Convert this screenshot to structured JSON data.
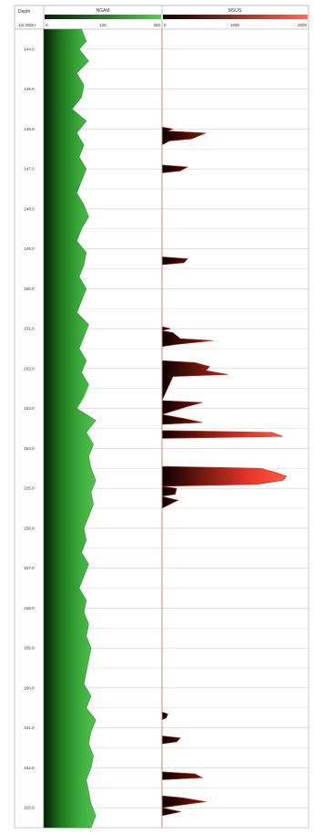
{
  "header": {
    "depth_title": "Depth",
    "depth_unit": "1m:200m",
    "track1": {
      "label": "NGAM",
      "min_label": "0",
      "mid_label": "125",
      "max_label": "250",
      "min": 0,
      "max": 250,
      "color": "#3fae3f"
    },
    "track2": {
      "label": "MSUS",
      "min_label": "0",
      "mid_label": "1000",
      "max_label": "2000",
      "min": 0,
      "max": 2000,
      "color": "#e8462f"
    }
  },
  "chart_data": {
    "type": "area",
    "title": "",
    "depth_range": [
      143.5,
      163.5
    ],
    "depth_ticks": [
      "144.0",
      "145.0",
      "146.0",
      "147.0",
      "148.0",
      "149.0",
      "150.0",
      "151.0",
      "152.0",
      "153.0",
      "154.0",
      "155.0",
      "156.0",
      "157.0",
      "158.0",
      "159.0",
      "160.0",
      "161.0",
      "162.0",
      "163.0"
    ],
    "series": [
      {
        "name": "NGAM",
        "x_range": [
          0,
          250
        ],
        "depth": [
          143.5,
          143.8,
          144.0,
          144.3,
          144.6,
          144.9,
          145.2,
          145.5,
          145.8,
          146.1,
          146.4,
          146.7,
          147.0,
          147.3,
          147.6,
          147.9,
          148.2,
          148.5,
          148.8,
          149.1,
          149.4,
          149.7,
          150.0,
          150.3,
          150.6,
          150.9,
          151.2,
          151.5,
          151.8,
          152.1,
          152.4,
          152.7,
          153.0,
          153.3,
          153.6,
          153.9,
          154.2,
          154.5,
          154.8,
          155.1,
          155.4,
          155.7,
          156.0,
          156.3,
          156.6,
          156.9,
          157.2,
          157.5,
          157.8,
          158.1,
          158.4,
          158.7,
          159.0,
          159.3,
          159.6,
          159.9,
          160.2,
          160.5,
          160.8,
          161.1,
          161.4,
          161.7,
          162.0,
          162.3,
          162.6,
          162.9,
          163.2,
          163.5
        ],
        "values": [
          80,
          90,
          75,
          95,
          70,
          85,
          80,
          60,
          90,
          70,
          85,
          75,
          90,
          80,
          70,
          85,
          95,
          80,
          70,
          90,
          85,
          75,
          90,
          80,
          70,
          95,
          85,
          75,
          90,
          80,
          95,
          85,
          70,
          110,
          90,
          105,
          95,
          100,
          110,
          100,
          105,
          95,
          85,
          90,
          80,
          95,
          85,
          75,
          90,
          85,
          95,
          90,
          100,
          95,
          90,
          85,
          100,
          90,
          110,
          100,
          95,
          105,
          100,
          90,
          95,
          100,
          110,
          100
        ]
      },
      {
        "name": "MSUS",
        "x_range": [
          0,
          2000
        ],
        "depth": [
          143.5,
          145.95,
          146.0,
          146.05,
          146.1,
          146.25,
          146.3,
          146.4,
          146.45,
          146.9,
          146.95,
          147.05,
          147.1,
          149.2,
          149.25,
          149.35,
          149.4,
          150.95,
          151.0,
          151.05,
          151.1,
          151.25,
          151.3,
          151.4,
          151.45,
          151.8,
          151.85,
          151.95,
          152.05,
          152.15,
          152.2,
          152.8,
          152.85,
          152.95,
          153.15,
          153.25,
          153.35,
          153.4,
          153.55,
          153.6,
          153.7,
          153.75,
          154.45,
          154.5,
          154.6,
          154.7,
          154.8,
          154.9,
          154.95,
          155.0,
          155.15,
          155.2,
          155.3,
          155.35,
          155.5,
          155.55,
          160.6,
          160.65,
          160.75,
          160.8,
          161.2,
          161.25,
          161.35,
          161.4,
          162.1,
          162.15,
          162.25,
          162.3,
          162.7,
          162.75,
          162.85,
          162.9,
          163.0,
          163.1,
          163.2,
          163.3,
          163.45,
          163.5
        ],
        "values": [
          0,
          0,
          150,
          80,
          600,
          400,
          100,
          0,
          0,
          0,
          350,
          250,
          0,
          0,
          350,
          300,
          0,
          0,
          120,
          0,
          150,
          250,
          700,
          180,
          0,
          0,
          450,
          650,
          600,
          900,
          150,
          0,
          550,
          350,
          0,
          300,
          550,
          0,
          0,
          1500,
          1650,
          0,
          0,
          1350,
          1550,
          1700,
          1650,
          1300,
          0,
          200,
          180,
          0,
          220,
          160,
          0,
          0,
          0,
          80,
          60,
          0,
          0,
          250,
          200,
          0,
          0,
          450,
          550,
          0,
          0,
          280,
          600,
          400,
          0,
          260,
          0,
          0,
          0,
          0
        ]
      }
    ],
    "grid": true
  }
}
